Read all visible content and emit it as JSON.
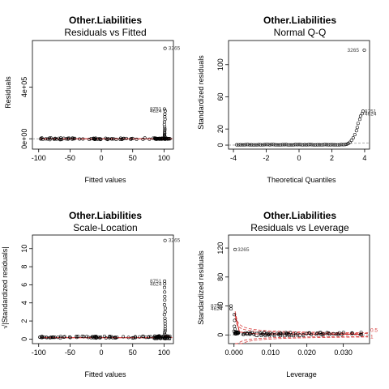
{
  "chart_data": [
    {
      "id": "p1",
      "type": "scatter",
      "title": "Other.Liabilities",
      "subtitle": "Residuals vs Fitted",
      "xlabel": "Fitted values",
      "ylabel": "Residuals",
      "xlim": [
        -110,
        115
      ],
      "ylim": [
        -80000,
        760000
      ],
      "xticks": [
        -100,
        -50,
        0,
        50,
        100
      ],
      "xtick_labels": [
        "-100",
        "-50",
        "0",
        "50",
        "100"
      ],
      "yticks": [
        0,
        400000
      ],
      "ytick_labels": [
        "0e+00",
        "4e+05"
      ],
      "ref_line_y": 0,
      "labels": [
        {
          "text": "3265",
          "x": 103,
          "y": 700000
        },
        {
          "text": "8751",
          "x": 102,
          "y": 230000
        },
        {
          "text": "4624",
          "x": 102,
          "y": 215000
        }
      ]
    },
    {
      "id": "p2",
      "type": "scatter",
      "title": "Other.Liabilities",
      "subtitle": "Normal Q-Q",
      "xlabel": "Theoretical Quantiles",
      "ylabel": "Standardized residuals",
      "xlim": [
        -4.3,
        4.3
      ],
      "ylim": [
        -5,
        130
      ],
      "xticks": [
        -4,
        -2,
        0,
        2,
        4
      ],
      "xtick_labels": [
        "-4",
        "-2",
        "0",
        "2",
        "4"
      ],
      "yticks": [
        0,
        20,
        60,
        100
      ],
      "ytick_labels": [
        "0",
        "20",
        "60",
        "100"
      ],
      "labels": [
        {
          "text": "3265",
          "x": 3.98,
          "y": 118
        },
        {
          "text": "8751",
          "x": 3.85,
          "y": 42
        },
        {
          "text": "4624",
          "x": 3.85,
          "y": 39
        }
      ]
    },
    {
      "id": "p3",
      "type": "scatter",
      "title": "Other.Liabilities",
      "subtitle": "Scale-Location",
      "xlabel": "Fitted values",
      "ylabel": "√|Standardized residuals|",
      "xlim": [
        -110,
        115
      ],
      "ylim": [
        -0.5,
        11.5
      ],
      "xticks": [
        -100,
        -50,
        0,
        50,
        100
      ],
      "xtick_labels": [
        "-100",
        "-50",
        "0",
        "50",
        "100"
      ],
      "yticks": [
        0,
        2,
        4,
        6,
        8,
        10
      ],
      "ytick_labels": [
        "0",
        "2",
        "4",
        "6",
        "8",
        "10"
      ],
      "labels": [
        {
          "text": "3265",
          "x": 103,
          "y": 10.9
        },
        {
          "text": "8751",
          "x": 102,
          "y": 6.4
        },
        {
          "text": "4624",
          "x": 102,
          "y": 6.1
        }
      ]
    },
    {
      "id": "p4",
      "type": "scatter",
      "title": "Other.Liabilities",
      "subtitle": "Residuals vs Leverage",
      "xlabel": "Leverage",
      "ylabel": "Standardized residuals",
      "xlim": [
        -0.0015,
        0.0372
      ],
      "ylim": [
        -12,
        138
      ],
      "xticks": [
        0,
        0.01,
        0.02,
        0.03
      ],
      "xtick_labels": [
        "0.000",
        "0.010",
        "0.020",
        "0.030"
      ],
      "yticks": [
        0,
        40,
        80,
        120
      ],
      "ytick_labels": [
        "0",
        "40",
        "80",
        "120"
      ],
      "cooks_label": "Cook's distance",
      "cooks_levels": [
        "0.5",
        "1"
      ],
      "labels": [
        {
          "text": "3265",
          "x": 0.0003,
          "y": 118
        },
        {
          "text": "8751",
          "x": -0.0008,
          "y": 40
        },
        {
          "text": "4624",
          "x": -0.0008,
          "y": 36
        }
      ]
    }
  ]
}
